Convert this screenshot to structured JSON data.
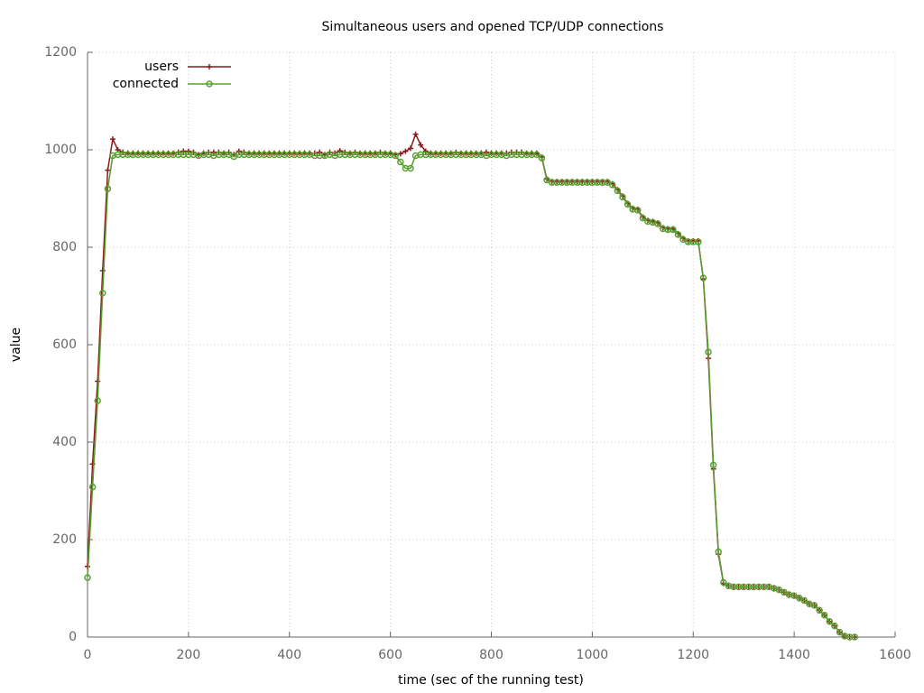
{
  "chart_data": {
    "type": "line",
    "title": "Simultaneous users and opened TCP/UDP connections",
    "x_label": "time (sec of the running test)",
    "y_label": "value",
    "xlim": [
      0,
      1600
    ],
    "xticks": [
      0,
      200,
      400,
      600,
      800,
      1000,
      1200,
      1400,
      1600
    ],
    "ylim": [
      0,
      1200
    ],
    "yticks": [
      0,
      200,
      400,
      600,
      800,
      1000,
      1200
    ],
    "grid": true,
    "legend": "top-left",
    "x": [
      0,
      10,
      20,
      30,
      40,
      50,
      60,
      70,
      80,
      90,
      100,
      110,
      120,
      130,
      140,
      150,
      160,
      170,
      180,
      190,
      200,
      210,
      220,
      230,
      240,
      250,
      260,
      270,
      280,
      290,
      300,
      310,
      320,
      330,
      340,
      350,
      360,
      370,
      380,
      390,
      400,
      410,
      420,
      430,
      440,
      450,
      460,
      470,
      480,
      490,
      500,
      510,
      520,
      530,
      540,
      550,
      560,
      570,
      580,
      590,
      600,
      610,
      620,
      630,
      640,
      650,
      660,
      670,
      680,
      690,
      700,
      710,
      720,
      730,
      740,
      750,
      760,
      770,
      780,
      790,
      800,
      810,
      820,
      830,
      840,
      850,
      860,
      870,
      880,
      890,
      900,
      910,
      920,
      930,
      940,
      950,
      960,
      970,
      980,
      990,
      1000,
      1010,
      1020,
      1030,
      1040,
      1050,
      1060,
      1070,
      1080,
      1090,
      1100,
      1110,
      1120,
      1130,
      1140,
      1150,
      1160,
      1170,
      1180,
      1190,
      1200,
      1210,
      1220,
      1230,
      1240,
      1250,
      1260,
      1270,
      1280,
      1290,
      1300,
      1310,
      1320,
      1330,
      1340,
      1350,
      1360,
      1370,
      1380,
      1390,
      1400,
      1410,
      1420,
      1430,
      1440,
      1450,
      1460,
      1470,
      1480,
      1490,
      1500,
      1510,
      1520
    ],
    "series": [
      {
        "name": "users",
        "color": "#8b1a1a",
        "marker": "plus",
        "values": [
          145,
          355,
          525,
          752,
          958,
          1022,
          1000,
          995,
          993,
          993,
          993,
          993,
          993,
          993,
          993,
          993,
          993,
          993,
          995,
          997,
          997,
          995,
          990,
          993,
          995,
          995,
          995,
          993,
          995,
          990,
          997,
          995,
          993,
          993,
          993,
          993,
          993,
          993,
          993,
          993,
          993,
          993,
          993,
          993,
          993,
          993,
          995,
          990,
          995,
          993,
          998,
          995,
          993,
          995,
          993,
          993,
          993,
          993,
          995,
          993,
          993,
          990,
          992,
          997,
          1003,
          1032,
          1010,
          997,
          993,
          993,
          993,
          993,
          993,
          995,
          993,
          993,
          993,
          993,
          993,
          995,
          993,
          993,
          993,
          993,
          995,
          995,
          995,
          993,
          993,
          993,
          985,
          940,
          935,
          935,
          935,
          935,
          935,
          935,
          935,
          935,
          935,
          935,
          935,
          935,
          930,
          918,
          905,
          890,
          880,
          878,
          862,
          855,
          853,
          850,
          840,
          838,
          838,
          828,
          818,
          813,
          813,
          813,
          735,
          572,
          345,
          170,
          110,
          105,
          103,
          103,
          103,
          103,
          103,
          103,
          103,
          103,
          100,
          97,
          92,
          87,
          85,
          80,
          75,
          68,
          65,
          55,
          45,
          32,
          23,
          10,
          2,
          0,
          0
        ]
      },
      {
        "name": "connected",
        "color": "#5a9e32",
        "marker": "circle",
        "values": [
          122,
          308,
          485,
          706,
          920,
          988,
          990,
          990,
          990,
          990,
          990,
          990,
          990,
          990,
          990,
          990,
          990,
          990,
          990,
          990,
          990,
          990,
          988,
          990,
          990,
          988,
          990,
          990,
          990,
          986,
          990,
          990,
          990,
          990,
          990,
          990,
          990,
          990,
          990,
          990,
          990,
          990,
          990,
          990,
          990,
          988,
          988,
          988,
          990,
          988,
          990,
          990,
          990,
          990,
          990,
          990,
          990,
          990,
          990,
          990,
          990,
          988,
          975,
          962,
          962,
          988,
          990,
          990,
          990,
          990,
          990,
          990,
          990,
          990,
          990,
          990,
          990,
          990,
          990,
          988,
          990,
          990,
          990,
          988,
          990,
          990,
          990,
          990,
          990,
          990,
          983,
          938,
          933,
          933,
          933,
          933,
          933,
          933,
          933,
          933,
          933,
          933,
          933,
          933,
          928,
          916,
          903,
          888,
          878,
          876,
          860,
          853,
          851,
          848,
          838,
          836,
          836,
          826,
          816,
          811,
          811,
          811,
          737,
          585,
          353,
          175,
          112,
          105,
          103,
          103,
          103,
          103,
          103,
          103,
          103,
          103,
          100,
          97,
          92,
          87,
          85,
          80,
          75,
          68,
          65,
          55,
          45,
          32,
          23,
          10,
          2,
          0,
          0
        ]
      }
    ]
  }
}
